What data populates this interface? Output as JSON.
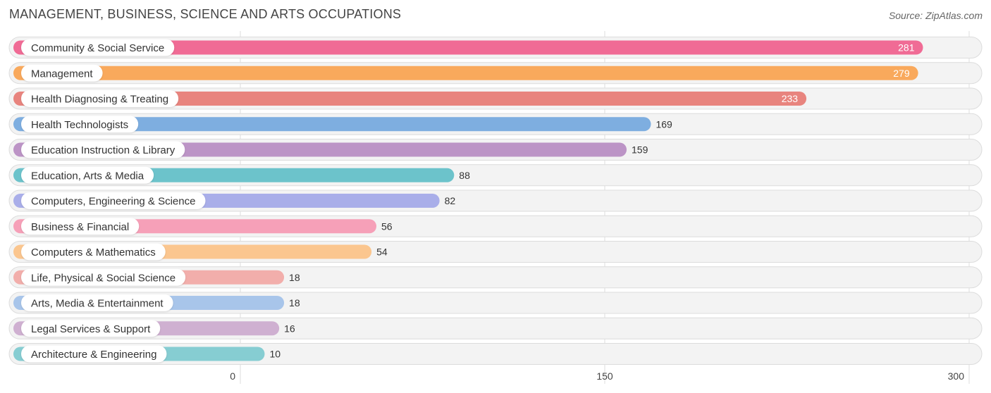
{
  "title": "MANAGEMENT, BUSINESS, SCIENCE AND ARTS OCCUPATIONS",
  "source": "Source: ZipAtlas.com",
  "chart_data": {
    "type": "bar",
    "orientation": "horizontal",
    "title": "MANAGEMENT, BUSINESS, SCIENCE AND ARTS OCCUPATIONS",
    "categories": [
      "Community & Social Service",
      "Management",
      "Health Diagnosing & Treating",
      "Health Technologists",
      "Education Instruction & Library",
      "Education, Arts & Media",
      "Computers, Engineering & Science",
      "Business & Financial",
      "Computers & Mathematics",
      "Life, Physical & Social Science",
      "Arts, Media & Entertainment",
      "Legal Services & Support",
      "Architecture & Engineering"
    ],
    "values": [
      281,
      279,
      233,
      169,
      159,
      88,
      82,
      56,
      54,
      18,
      18,
      16,
      10
    ],
    "colors": [
      "#f06b95",
      "#f9a95c",
      "#e8847e",
      "#7eaee0",
      "#bc94c6",
      "#6cc3cb",
      "#a9aee9",
      "#f6a0b8",
      "#fbc68f",
      "#f2aeab",
      "#a8c5ea",
      "#cfb0d1",
      "#86cdd2"
    ],
    "xlim": [
      0,
      300
    ],
    "xticks": [
      0,
      150,
      300
    ],
    "grid": true,
    "legend": "none"
  }
}
